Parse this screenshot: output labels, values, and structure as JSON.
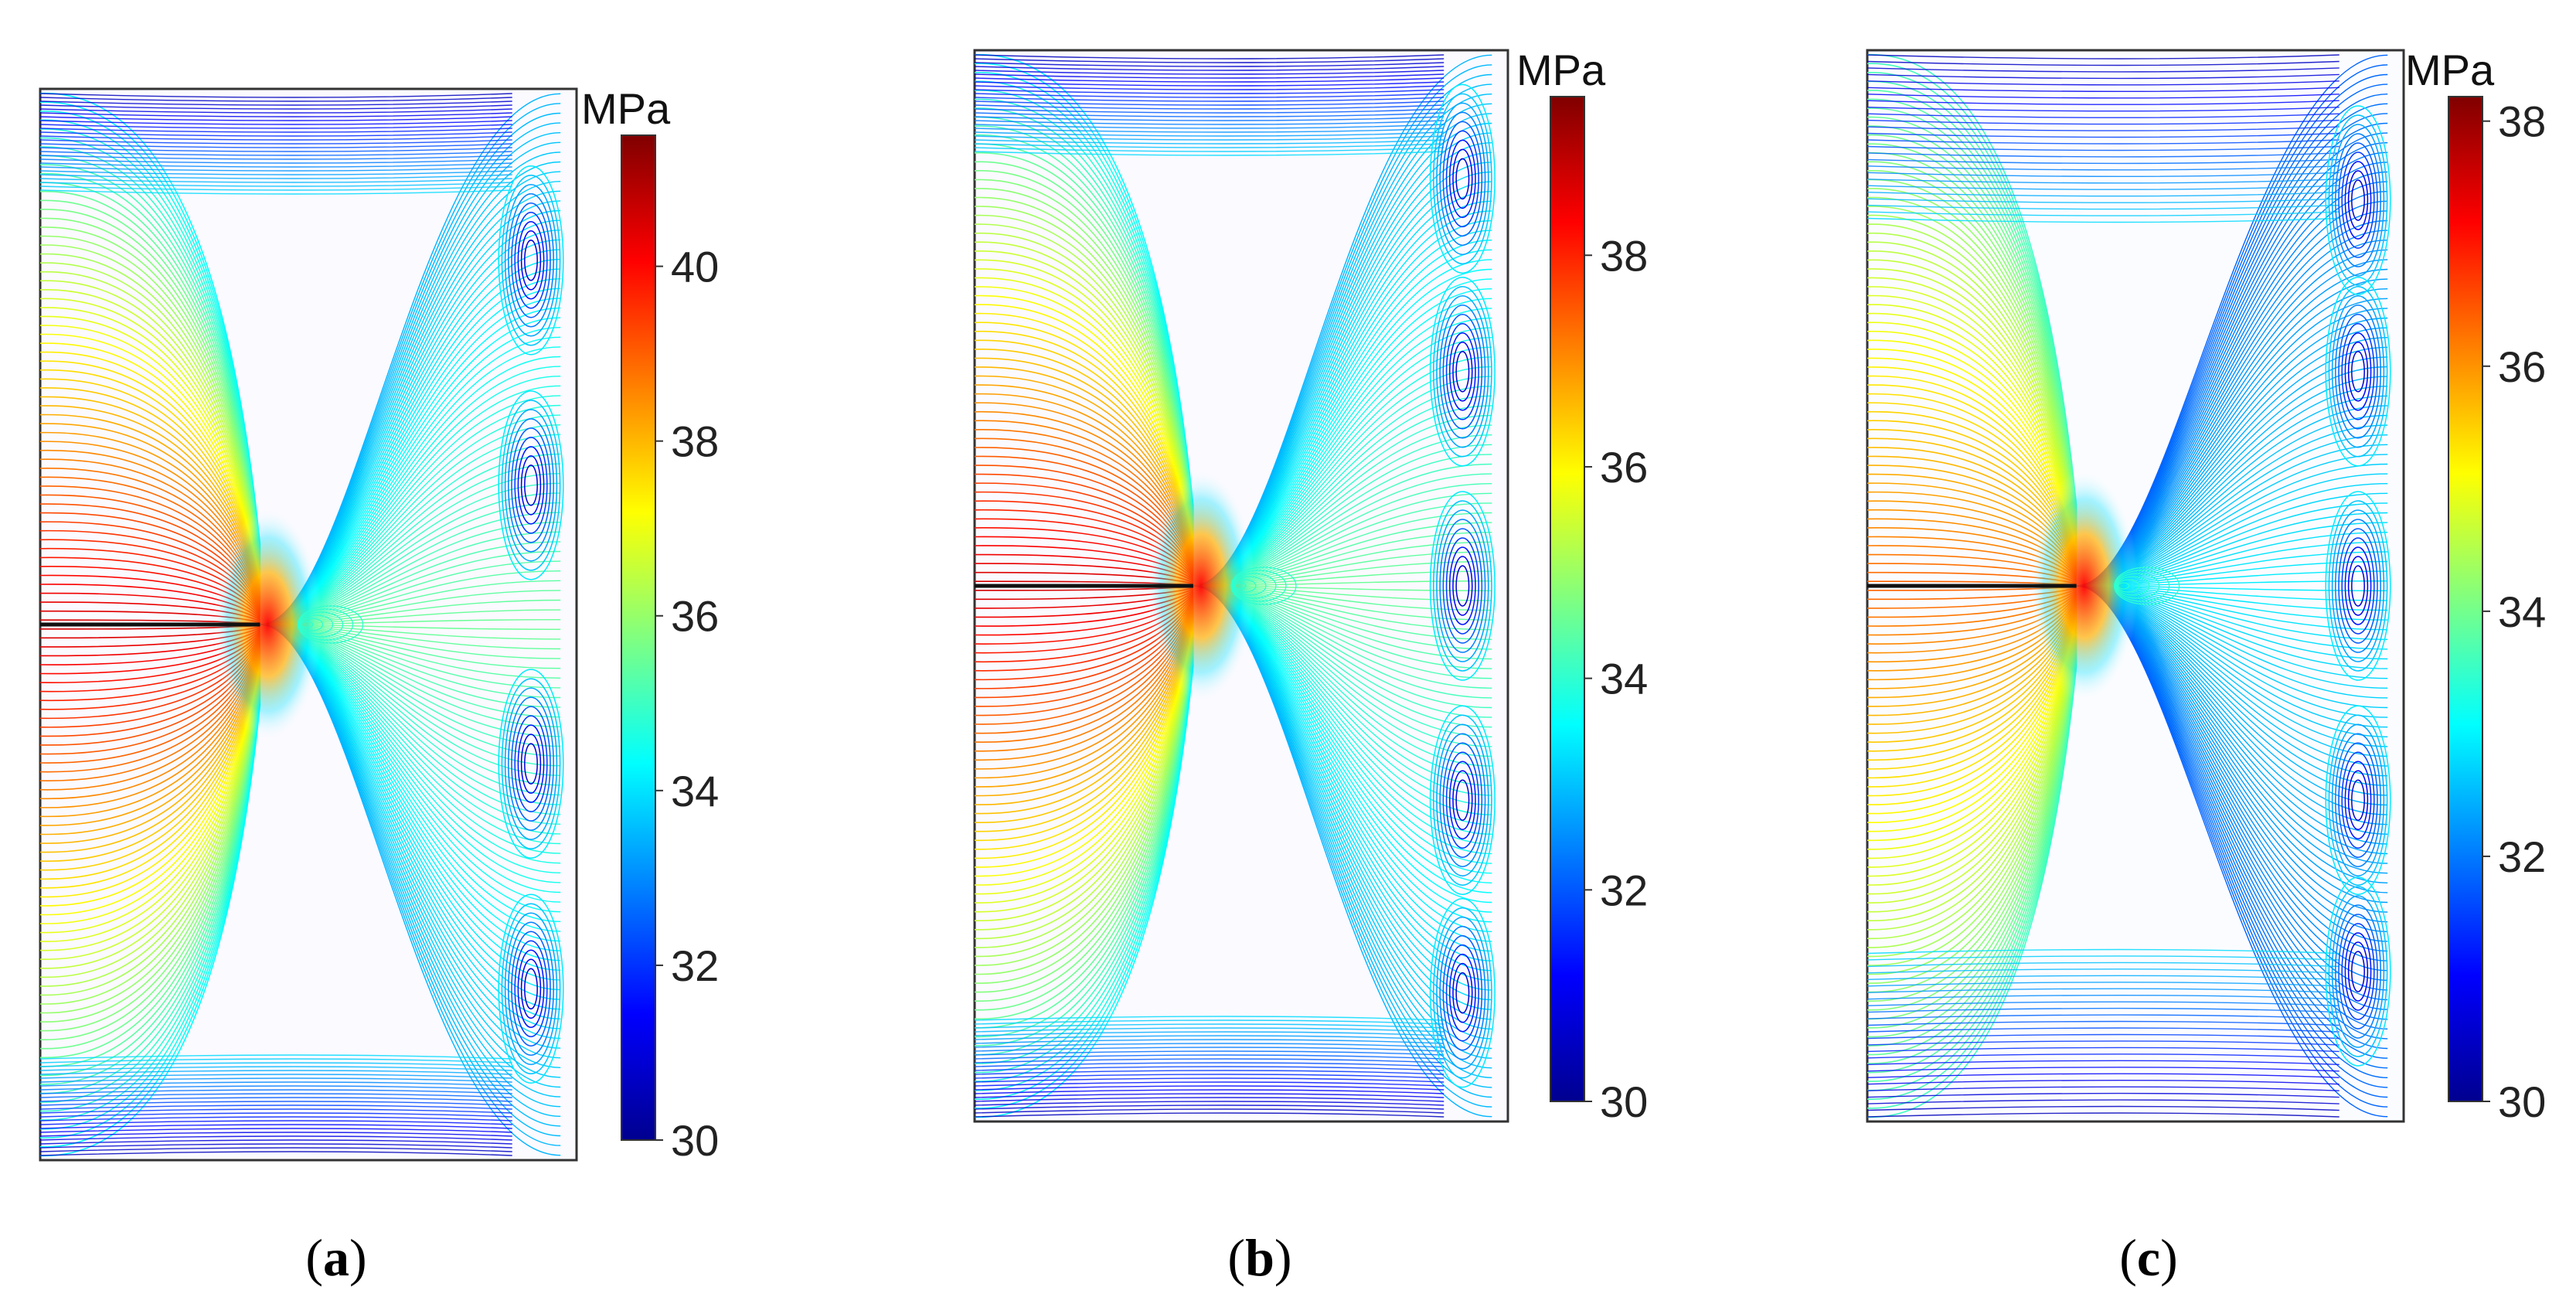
{
  "chart_data": [
    {
      "type": "contour",
      "caption": "a",
      "colorbar": {
        "unit": "MPa",
        "range": [
          30,
          41.5
        ],
        "ticks": [
          30,
          32,
          34,
          36,
          38,
          40
        ]
      },
      "crack_tip_fraction": 0.41
    },
    {
      "type": "contour",
      "caption": "b",
      "colorbar": {
        "unit": "MPa",
        "range": [
          30,
          39.5
        ],
        "ticks": [
          30,
          32,
          34,
          36,
          38
        ]
      },
      "crack_tip_fraction": 0.41
    },
    {
      "type": "contour",
      "caption": "c",
      "colorbar": {
        "unit": "MPa",
        "range": [
          30,
          38.2
        ],
        "ticks": [
          30,
          32,
          34,
          36,
          38
        ]
      },
      "crack_tip_fraction": 0.39
    }
  ],
  "colormap": [
    "#00008f",
    "#0000ff",
    "#0080ff",
    "#00ffff",
    "#80ff80",
    "#ffff00",
    "#ff8000",
    "#ff0000",
    "#800000"
  ]
}
